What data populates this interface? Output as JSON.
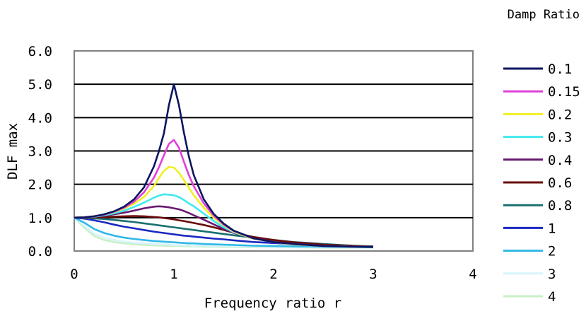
{
  "chart_data": {
    "type": "line",
    "title": "",
    "xlabel": "Frequency ratio r",
    "ylabel": "DLF max",
    "xlim": [
      0,
      4
    ],
    "ylim": [
      0,
      6
    ],
    "x_ticks": [
      "0",
      "1",
      "2",
      "3",
      "4"
    ],
    "y_ticks": [
      "0.0",
      "1.0",
      "2.0",
      "3.0",
      "4.0",
      "5.0",
      "6.0"
    ],
    "grid": "horizontal",
    "legend_title": "Damp Ratio",
    "legend_position": "right",
    "x": [
      0,
      0.1,
      0.2,
      0.3,
      0.4,
      0.5,
      0.6,
      0.7,
      0.8,
      0.85,
      0.9,
      0.95,
      1.0,
      1.05,
      1.1,
      1.15,
      1.2,
      1.3,
      1.4,
      1.5,
      1.6,
      1.8,
      2.0,
      2.2,
      2.5,
      2.8,
      3.0
    ],
    "series": [
      {
        "name": "0.1",
        "color": "#0b1560",
        "values": [
          1.0,
          1.01,
          1.04,
          1.1,
          1.19,
          1.33,
          1.55,
          1.91,
          2.54,
          2.99,
          3.53,
          4.37,
          5.0,
          4.38,
          3.56,
          2.84,
          2.27,
          1.55,
          1.11,
          0.82,
          0.61,
          0.38,
          0.27,
          0.21,
          0.15,
          0.13,
          0.12
        ]
      },
      {
        "name": "0.15",
        "color": "#e040d8",
        "values": [
          1.0,
          1.01,
          1.04,
          1.09,
          1.18,
          1.3,
          1.48,
          1.76,
          2.2,
          2.51,
          2.87,
          3.21,
          3.33,
          3.1,
          2.68,
          2.28,
          1.94,
          1.43,
          1.06,
          0.79,
          0.6,
          0.38,
          0.27,
          0.21,
          0.15,
          0.13,
          0.12
        ]
      },
      {
        "name": "0.2",
        "color": "#f0f020",
        "values": [
          1.0,
          1.01,
          1.04,
          1.09,
          1.17,
          1.27,
          1.42,
          1.62,
          1.95,
          2.19,
          2.4,
          2.52,
          2.5,
          2.35,
          2.13,
          1.9,
          1.67,
          1.3,
          1.0,
          0.77,
          0.58,
          0.37,
          0.27,
          0.2,
          0.15,
          0.13,
          0.12
        ]
      },
      {
        "name": "0.3",
        "color": "#40e8f0",
        "values": [
          1.0,
          1.01,
          1.03,
          1.07,
          1.13,
          1.21,
          1.32,
          1.45,
          1.6,
          1.66,
          1.7,
          1.69,
          1.67,
          1.62,
          1.53,
          1.43,
          1.34,
          1.12,
          0.9,
          0.71,
          0.56,
          0.37,
          0.27,
          0.2,
          0.15,
          0.13,
          0.12
        ]
      },
      {
        "name": "0.4",
        "color": "#6a1a70",
        "values": [
          1.0,
          1.01,
          1.03,
          1.06,
          1.1,
          1.15,
          1.21,
          1.28,
          1.33,
          1.34,
          1.33,
          1.31,
          1.28,
          1.25,
          1.2,
          1.14,
          1.07,
          0.94,
          0.8,
          0.66,
          0.54,
          0.37,
          0.27,
          0.21,
          0.15,
          0.13,
          0.12
        ]
      },
      {
        "name": "0.6",
        "color": "#6a0a0a",
        "values": [
          1.0,
          1.0,
          1.01,
          1.02,
          1.03,
          1.04,
          1.05,
          1.04,
          1.02,
          1.01,
          0.99,
          0.97,
          0.95,
          0.92,
          0.9,
          0.87,
          0.84,
          0.78,
          0.71,
          0.63,
          0.55,
          0.42,
          0.33,
          0.26,
          0.19,
          0.15,
          0.13
        ]
      },
      {
        "name": "0.8",
        "color": "#1a7070",
        "values": [
          1.0,
          0.99,
          0.98,
          0.96,
          0.93,
          0.9,
          0.87,
          0.83,
          0.79,
          0.77,
          0.75,
          0.73,
          0.71,
          0.69,
          0.67,
          0.65,
          0.63,
          0.59,
          0.55,
          0.51,
          0.47,
          0.4,
          0.33,
          0.27,
          0.21,
          0.16,
          0.14
        ]
      },
      {
        "name": "1",
        "color": "#1a28c0",
        "values": [
          1.0,
          0.97,
          0.92,
          0.86,
          0.79,
          0.73,
          0.68,
          0.63,
          0.58,
          0.56,
          0.54,
          0.52,
          0.5,
          0.48,
          0.46,
          0.45,
          0.43,
          0.4,
          0.37,
          0.35,
          0.32,
          0.27,
          0.24,
          0.21,
          0.17,
          0.14,
          0.13
        ]
      },
      {
        "name": "2",
        "color": "#30b8e8",
        "values": [
          1.0,
          0.85,
          0.66,
          0.54,
          0.46,
          0.4,
          0.36,
          0.33,
          0.3,
          0.29,
          0.28,
          0.27,
          0.26,
          0.25,
          0.24,
          0.23,
          0.23,
          0.21,
          0.2,
          0.19,
          0.18,
          0.16,
          0.15,
          0.14,
          0.13,
          0.12,
          0.11
        ]
      },
      {
        "name": "3",
        "color": "#d8f4fc",
        "values": [
          1.0,
          0.76,
          0.52,
          0.4,
          0.33,
          0.28,
          0.25,
          0.23,
          0.21,
          0.2,
          0.2,
          0.19,
          0.18,
          0.18,
          0.17,
          0.17,
          0.16,
          0.16,
          0.15,
          0.15,
          0.14,
          0.13,
          0.12,
          0.12,
          0.11,
          0.11,
          0.1
        ]
      },
      {
        "name": "4",
        "color": "#c8f0c8",
        "values": [
          1.0,
          0.7,
          0.45,
          0.33,
          0.27,
          0.23,
          0.2,
          0.18,
          0.17,
          0.16,
          0.16,
          0.15,
          0.15,
          0.15,
          0.14,
          0.14,
          0.14,
          0.13,
          0.13,
          0.12,
          0.12,
          0.11,
          0.11,
          0.11,
          0.1,
          0.1,
          0.1
        ]
      }
    ]
  }
}
